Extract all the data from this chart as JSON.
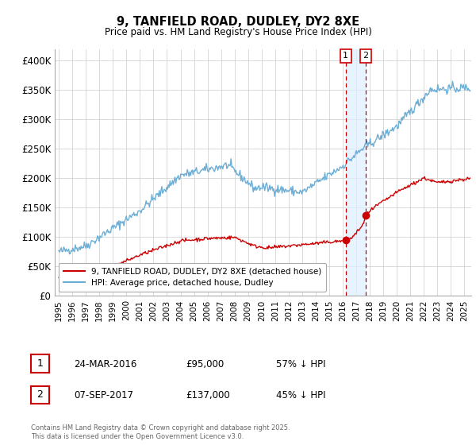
{
  "title": "9, TANFIELD ROAD, DUDLEY, DY2 8XE",
  "subtitle": "Price paid vs. HM Land Registry's House Price Index (HPI)",
  "ylim": [
    0,
    420000
  ],
  "xlim_start": 1994.7,
  "xlim_end": 2025.5,
  "yticks": [
    0,
    50000,
    100000,
    150000,
    200000,
    250000,
    300000,
    350000,
    400000
  ],
  "ytick_labels": [
    "£0",
    "£50K",
    "£100K",
    "£150K",
    "£200K",
    "£250K",
    "£300K",
    "£350K",
    "£400K"
  ],
  "xticks": [
    1995,
    1996,
    1997,
    1998,
    1999,
    2000,
    2001,
    2002,
    2003,
    2004,
    2005,
    2006,
    2007,
    2008,
    2009,
    2010,
    2011,
    2012,
    2013,
    2014,
    2015,
    2016,
    2017,
    2018,
    2019,
    2020,
    2021,
    2022,
    2023,
    2024,
    2025
  ],
  "hpi_color": "#6baed6",
  "price_color": "#cc0000",
  "vline_color": "#cc0000",
  "shade_color": "#ddeeff",
  "marker1_date": 2016.22,
  "marker1_price_val": 95000,
  "marker2_date": 2017.68,
  "marker2_price_val": 137000,
  "legend_label_price": "9, TANFIELD ROAD, DUDLEY, DY2 8XE (detached house)",
  "legend_label_hpi": "HPI: Average price, detached house, Dudley",
  "table_row1": [
    "1",
    "24-MAR-2016",
    "£95,000",
    "57% ↓ HPI"
  ],
  "table_row2": [
    "2",
    "07-SEP-2017",
    "£137,000",
    "45% ↓ HPI"
  ],
  "footer": "Contains HM Land Registry data © Crown copyright and database right 2025.\nThis data is licensed under the Open Government Licence v3.0.",
  "bg_color": "#ffffff",
  "grid_color": "#cccccc"
}
